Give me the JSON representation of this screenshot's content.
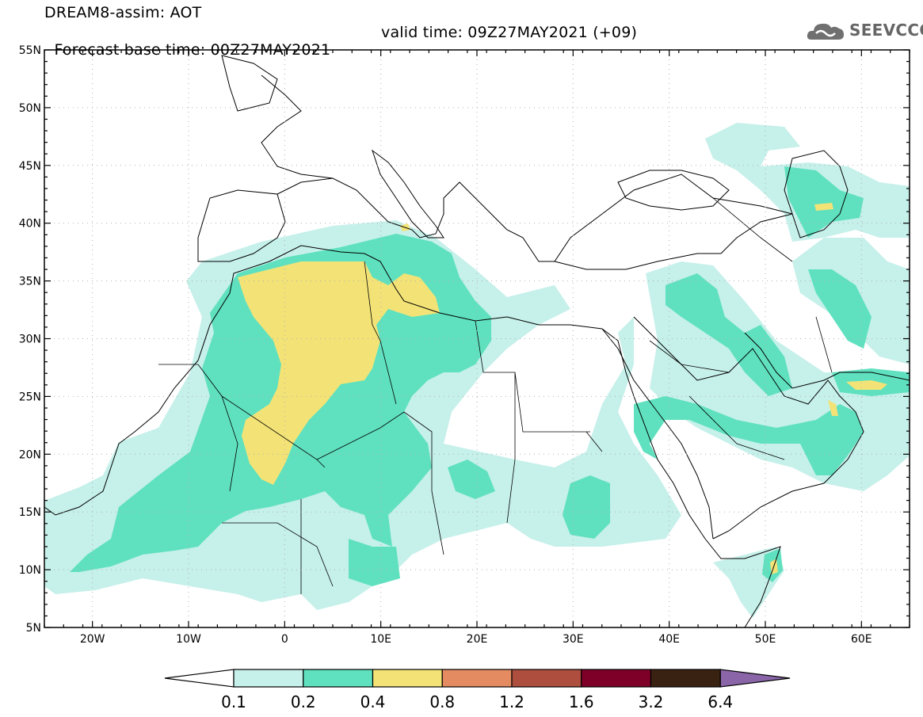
{
  "header": {
    "line1": "DREAM8-assim: AOT",
    "line2a": "Forecast base time: 00Z27MAY2021",
    "line2b": "valid time: 09Z27MAY2021 (+09)"
  },
  "logo": {
    "text": "SEEVCCC",
    "icon": "cloud-icon"
  },
  "map": {
    "lon_range": [
      -25,
      65
    ],
    "lat_range": [
      5,
      55
    ],
    "lat_labels": [
      "55N",
      "50N",
      "45N",
      "40N",
      "35N",
      "30N",
      "25N",
      "20N",
      "15N",
      "10N",
      "5N"
    ],
    "lon_labels": [
      "20W",
      "10W",
      "0",
      "10E",
      "20E",
      "30E",
      "40E",
      "50E",
      "60E"
    ],
    "grid": true
  },
  "colorbar": {
    "labels": [
      "0.1",
      "0.2",
      "0.4",
      "0.8",
      "1.2",
      "1.6",
      "3.2",
      "6.4"
    ],
    "colors": [
      "#ffffff",
      "#c6f0ea",
      "#5fe1bf",
      "#f3e377",
      "#e48b62",
      "#ad4e3e",
      "#7e0029",
      "#3a2212",
      "#8a66a8"
    ]
  },
  "field_colors": {
    "low": "#c6f0ea",
    "mid": "#5fe1bf",
    "high": "#f3e377"
  }
}
